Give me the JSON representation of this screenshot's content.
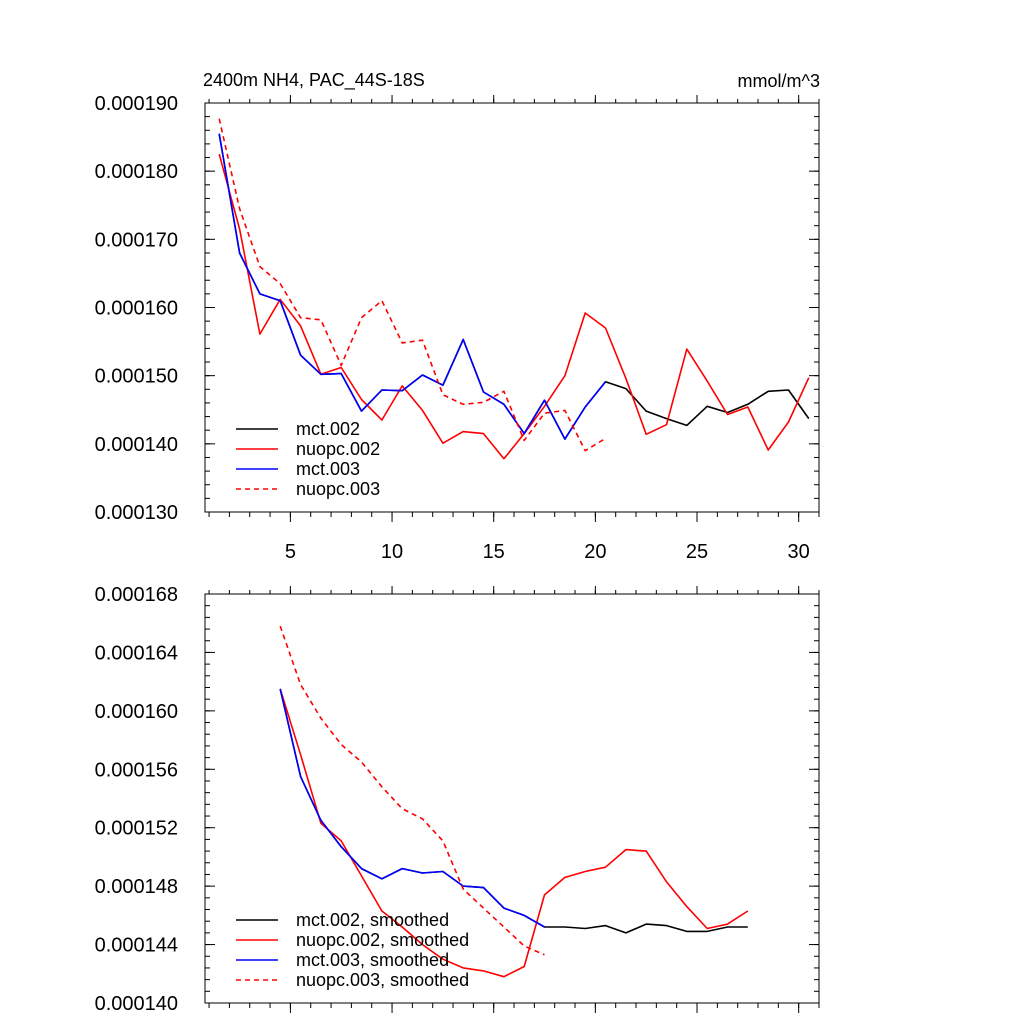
{
  "chart_data": [
    {
      "type": "line",
      "title": "2400m NH4, PAC_44S-18S",
      "units": "mmol/m^3",
      "xlim": [
        0.8,
        31.0
      ],
      "ylim": [
        0.00013,
        0.00019
      ],
      "xticks": [
        5,
        10,
        15,
        20,
        25,
        30
      ],
      "yticks": [
        0.00013,
        0.00014,
        0.00015,
        0.00016,
        0.00017,
        0.00018,
        0.00019
      ],
      "ytick_labels": [
        "0.000130",
        "0.000140",
        "0.000150",
        "0.000160",
        "0.000170",
        "0.000180",
        "0.000190"
      ],
      "legend_position": "bottom-left",
      "grid": false,
      "series": [
        {
          "name": "mct.002",
          "color": "#000000",
          "dash": "solid",
          "x": [
            1.5,
            2.5,
            3.5,
            4.5,
            5.5,
            6.5,
            7.5,
            8.5,
            9.5,
            10.5,
            11.5,
            12.5,
            13.5,
            14.5,
            15.5,
            16.5,
            17.5,
            18.5,
            19.5,
            20.5,
            21.5,
            22.5,
            23.5,
            24.5,
            25.5,
            26.5,
            27.5,
            28.5,
            29.5,
            30.5
          ],
          "y": [
            0.0001855,
            0.000168,
            0.000162,
            0.000161,
            0.000153,
            0.0001502,
            0.0001503,
            0.0001448,
            0.0001479,
            0.0001478,
            0.0001501,
            0.0001486,
            0.0001553,
            0.0001476,
            0.0001458,
            0.0001415,
            0.0001464,
            0.0001407,
            0.0001454,
            0.0001491,
            0.0001481,
            0.0001448,
            0.0001437,
            0.0001427,
            0.0001455,
            0.0001446,
            0.0001458,
            0.0001477,
            0.0001479,
            0.0001437
          ]
        },
        {
          "name": "nuopc.002",
          "color": "#ff0000",
          "dash": "solid",
          "x": [
            1.5,
            2.5,
            3.5,
            4.5,
            5.5,
            6.5,
            7.5,
            8.5,
            9.5,
            10.5,
            11.5,
            12.5,
            13.5,
            14.5,
            15.5,
            16.5,
            17.5,
            18.5,
            19.5,
            20.5,
            21.5,
            22.5,
            23.5,
            24.5,
            25.5,
            26.5,
            27.5,
            28.5,
            29.5,
            30.5
          ],
          "y": [
            0.0001825,
            0.0001715,
            0.0001561,
            0.0001612,
            0.0001573,
            0.0001502,
            0.0001512,
            0.0001465,
            0.0001435,
            0.0001485,
            0.0001449,
            0.0001401,
            0.0001418,
            0.0001415,
            0.0001378,
            0.0001415,
            0.0001455,
            0.00015,
            0.0001592,
            0.000157,
            0.0001496,
            0.0001414,
            0.0001428,
            0.0001539,
            0.0001492,
            0.0001443,
            0.0001454,
            0.0001391,
            0.0001432,
            0.0001497
          ]
        },
        {
          "name": "mct.003",
          "color": "#0000ff",
          "dash": "solid",
          "x": [
            1.5,
            2.5,
            3.5,
            4.5,
            5.5,
            6.5,
            7.5,
            8.5,
            9.5,
            10.5,
            11.5,
            12.5,
            13.5,
            14.5,
            15.5,
            16.5,
            17.5,
            18.5,
            19.5,
            20.5
          ],
          "y": [
            0.0001855,
            0.000168,
            0.000162,
            0.000161,
            0.000153,
            0.0001502,
            0.0001503,
            0.0001448,
            0.0001479,
            0.0001478,
            0.0001501,
            0.0001486,
            0.0001553,
            0.0001476,
            0.0001458,
            0.0001415,
            0.0001464,
            0.0001407,
            0.0001454,
            0.0001491
          ]
        },
        {
          "name": "nuopc.003",
          "color": "#ff0000",
          "dash": "dashed",
          "x": [
            1.5,
            2.5,
            3.5,
            4.5,
            5.5,
            6.5,
            7.5,
            8.5,
            9.5,
            10.5,
            11.5,
            12.5,
            13.5,
            14.5,
            15.5,
            16.5,
            17.5,
            18.5,
            19.5,
            20.5
          ],
          "y": [
            0.0001877,
            0.0001745,
            0.000166,
            0.0001635,
            0.0001585,
            0.0001582,
            0.0001515,
            0.0001585,
            0.000161,
            0.0001548,
            0.0001552,
            0.0001472,
            0.0001458,
            0.0001461,
            0.0001477,
            0.0001405,
            0.0001445,
            0.0001449,
            0.000139,
            0.0001408
          ]
        }
      ]
    },
    {
      "type": "line",
      "title": "",
      "xlim": [
        0.8,
        31.0
      ],
      "ylim": [
        0.00014,
        0.000168
      ],
      "xticks": [
        5,
        10,
        15,
        20,
        25,
        30
      ],
      "yticks": [
        0.00014,
        0.000144,
        0.000148,
        0.000152,
        0.000156,
        0.00016,
        0.000164,
        0.000168
      ],
      "ytick_labels": [
        "0.000140",
        "0.000144",
        "0.000148",
        "0.000152",
        "0.000156",
        "0.000160",
        "0.000164",
        "0.000168"
      ],
      "legend_position": "bottom-left",
      "grid": false,
      "series": [
        {
          "name": "mct.002, smoothed",
          "color": "#000000",
          "dash": "solid",
          "x": [
            4.5,
            5.5,
            6.5,
            7.5,
            8.5,
            9.5,
            10.5,
            11.5,
            12.5,
            13.5,
            14.5,
            15.5,
            16.5,
            17.5,
            18.5,
            19.5,
            20.5,
            21.5,
            22.5,
            23.5,
            24.5,
            25.5,
            26.5,
            27.5
          ],
          "y": [
            0.0001615,
            0.0001555,
            0.0001525,
            0.0001507,
            0.0001492,
            0.0001485,
            0.0001492,
            0.0001489,
            0.000149,
            0.000148,
            0.0001479,
            0.0001465,
            0.000146,
            0.0001452,
            0.0001452,
            0.0001451,
            0.0001453,
            0.0001448,
            0.0001454,
            0.0001453,
            0.0001449,
            0.0001449,
            0.0001452,
            0.0001452
          ]
        },
        {
          "name": "nuopc.002, smoothed",
          "color": "#ff0000",
          "dash": "solid",
          "x": [
            4.5,
            5.5,
            6.5,
            7.5,
            8.5,
            9.5,
            10.5,
            11.5,
            12.5,
            13.5,
            14.5,
            15.5,
            16.5,
            17.5,
            18.5,
            19.5,
            20.5,
            21.5,
            22.5,
            23.5,
            24.5,
            25.5,
            26.5,
            27.5
          ],
          "y": [
            0.0001615,
            0.000157,
            0.0001523,
            0.0001511,
            0.0001487,
            0.0001463,
            0.0001452,
            0.000144,
            0.000143,
            0.0001424,
            0.0001422,
            0.0001418,
            0.0001425,
            0.0001474,
            0.0001486,
            0.000149,
            0.0001493,
            0.0001505,
            0.0001504,
            0.0001483,
            0.0001466,
            0.0001451,
            0.0001454,
            0.0001463
          ]
        },
        {
          "name": "mct.003, smoothed",
          "color": "#0000ff",
          "dash": "solid",
          "x": [
            4.5,
            5.5,
            6.5,
            7.5,
            8.5,
            9.5,
            10.5,
            11.5,
            12.5,
            13.5,
            14.5,
            15.5,
            16.5,
            17.5
          ],
          "y": [
            0.0001615,
            0.0001555,
            0.0001525,
            0.0001507,
            0.0001492,
            0.0001485,
            0.0001492,
            0.0001489,
            0.000149,
            0.000148,
            0.0001479,
            0.0001465,
            0.000146,
            0.0001452
          ]
        },
        {
          "name": "nuopc.003, smoothed",
          "color": "#ff0000",
          "dash": "dashed",
          "x": [
            4.5,
            5.5,
            6.5,
            7.5,
            8.5,
            9.5,
            10.5,
            11.5,
            12.5,
            13.5,
            14.5,
            15.5,
            16.5,
            17.5
          ],
          "y": [
            0.0001658,
            0.0001618,
            0.0001595,
            0.0001577,
            0.0001565,
            0.0001548,
            0.0001533,
            0.0001526,
            0.0001511,
            0.0001478,
            0.0001465,
            0.0001452,
            0.0001439,
            0.0001433
          ]
        }
      ]
    }
  ]
}
